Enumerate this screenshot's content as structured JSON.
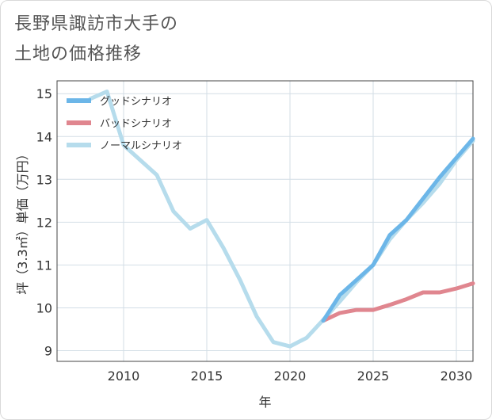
{
  "title_lines": [
    "長野県諏訪市大手の",
    "土地の価格推移"
  ],
  "chart_data": {
    "type": "line",
    "xlabel": "年",
    "ylabel": "坪（3.3㎡）単価（万円）",
    "xlim": [
      2006,
      2031
    ],
    "ylim": [
      8.75,
      15.3
    ],
    "xticks": [
      2010,
      2015,
      2020,
      2025,
      2030
    ],
    "yticks": [
      9,
      10,
      11,
      12,
      13,
      14,
      15
    ],
    "grid": true,
    "legend_position": "top-left",
    "series": [
      {
        "name": "グッドシナリオ",
        "color": "#6cb6e8",
        "x": [
          2022,
          2023,
          2024,
          2025,
          2026,
          2027,
          2028,
          2029,
          2030,
          2031
        ],
        "y": [
          9.7,
          10.3,
          10.65,
          11.0,
          11.7,
          12.05,
          12.55,
          13.05,
          13.5,
          13.95
        ]
      },
      {
        "name": "バッドシナリオ",
        "color": "#e0868f",
        "x": [
          2022,
          2023,
          2024,
          2025,
          2026,
          2027,
          2028,
          2029,
          2030,
          2031
        ],
        "y": [
          9.7,
          9.88,
          9.95,
          9.95,
          10.07,
          10.2,
          10.36,
          10.36,
          10.45,
          10.57
        ]
      },
      {
        "name": "ノーマルシナリオ",
        "color": "#b6dcec",
        "x": [
          2008,
          2009,
          2010,
          2011,
          2012,
          2013,
          2014,
          2015,
          2016,
          2017,
          2018,
          2019,
          2020,
          2021,
          2022,
          2023,
          2024,
          2025,
          2026,
          2027,
          2028,
          2029,
          2030,
          2031
        ],
        "y": [
          14.88,
          15.05,
          13.8,
          13.45,
          13.1,
          12.25,
          11.85,
          12.05,
          11.4,
          10.65,
          9.8,
          9.2,
          9.1,
          9.3,
          9.72,
          10.15,
          10.6,
          11.0,
          11.6,
          12.05,
          12.45,
          12.9,
          13.45,
          13.9
        ]
      }
    ]
  }
}
